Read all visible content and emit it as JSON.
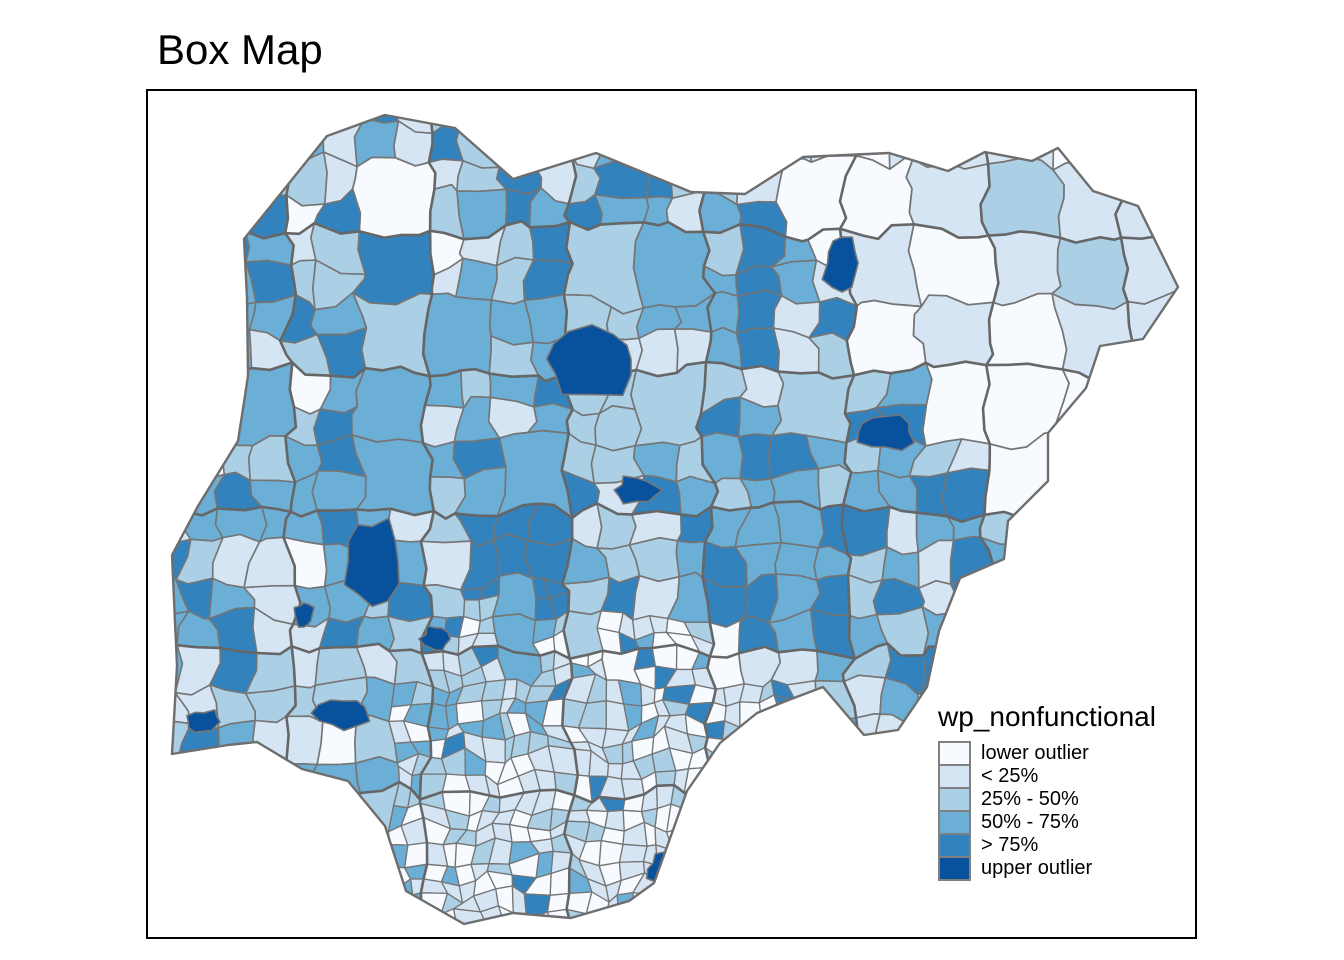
{
  "title": "Box Map",
  "legend": {
    "title": "wp_nonfunctional",
    "items": [
      {
        "label": "lower outlier",
        "color": "#F7FBFF"
      },
      {
        "label": "< 25%",
        "color": "#D5E5F4"
      },
      {
        "label": "25% - 50%",
        "color": "#ABCFE5"
      },
      {
        "label": "50% - 75%",
        "color": "#6BAED6"
      },
      {
        "label": "> 75%",
        "color": "#3182BD"
      },
      {
        "label": "upper outlier",
        "color": "#08519C"
      }
    ],
    "swatch_border_color": "#808080"
  },
  "map": {
    "region_border_color": "#757575",
    "state_border_color": "#666666",
    "outline_color": "#6e6e6e",
    "frame_border_color": "#000000",
    "background_color": "#ffffff"
  }
}
